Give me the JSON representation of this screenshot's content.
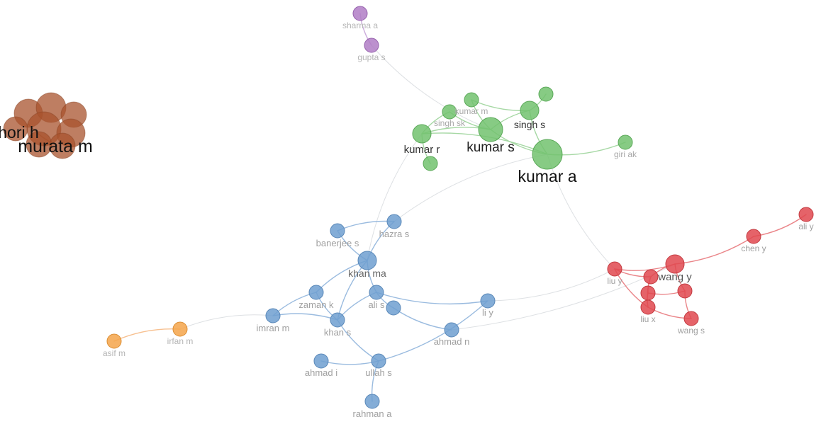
{
  "clusters": {
    "green": {
      "color": "#72c26f",
      "stroke": "#5aa858",
      "edge": "#9cd49a"
    },
    "blue": {
      "color": "#6f9fd0",
      "stroke": "#5a88b8",
      "edge": "#8fb4dc"
    },
    "red": {
      "color": "#e0484f",
      "stroke": "#c23a40",
      "edge": "#e8787c"
    },
    "purple": {
      "color": "#b07cc6",
      "stroke": "#9662ad",
      "edge": "#c7a3d8"
    },
    "orange": {
      "color": "#f5a54a",
      "stroke": "#dc8f35",
      "edge": "#f6b984"
    },
    "brown": {
      "color": "#a8532d",
      "stroke": "#8a4324",
      "edge": "#b86a48"
    }
  },
  "nodes": [
    {
      "id": "sharma-a",
      "label": "sharma a",
      "cluster": "purple",
      "weight": 1
    },
    {
      "id": "gupta-s",
      "label": "gupta s",
      "cluster": "purple",
      "weight": 1
    },
    {
      "id": "kumar-m",
      "label": "kumar m",
      "cluster": "green",
      "weight": 1
    },
    {
      "id": "singh-sk",
      "label": "singh sk",
      "cluster": "green",
      "weight": 1
    },
    {
      "id": "singh-s",
      "label": "singh s",
      "cluster": "green",
      "weight": 2
    },
    {
      "id": "green-top",
      "label": "",
      "cluster": "green",
      "weight": 1
    },
    {
      "id": "kumar-s",
      "label": "kumar s",
      "cluster": "green",
      "weight": 3
    },
    {
      "id": "kumar-r",
      "label": "kumar r",
      "cluster": "green",
      "weight": 2
    },
    {
      "id": "kumar-a",
      "label": "kumar a",
      "cluster": "green",
      "weight": 4
    },
    {
      "id": "giri-ak",
      "label": "giri ak",
      "cluster": "green",
      "weight": 1
    },
    {
      "id": "green-low",
      "label": "",
      "cluster": "green",
      "weight": 1
    },
    {
      "id": "hazra-s",
      "label": "hazra s",
      "cluster": "blue",
      "weight": 1
    },
    {
      "id": "banerjee-s",
      "label": "banerjee s",
      "cluster": "blue",
      "weight": 1
    },
    {
      "id": "khan-ma",
      "label": "khan ma",
      "cluster": "blue",
      "weight": 2
    },
    {
      "id": "zaman-k",
      "label": "zaman k",
      "cluster": "blue",
      "weight": 1
    },
    {
      "id": "ali-s",
      "label": "ali s",
      "cluster": "blue",
      "weight": 1
    },
    {
      "id": "blue-mid",
      "label": "",
      "cluster": "blue",
      "weight": 1
    },
    {
      "id": "khan-s",
      "label": "khan s",
      "cluster": "blue",
      "weight": 1
    },
    {
      "id": "imran-m",
      "label": "imran m",
      "cluster": "blue",
      "weight": 1
    },
    {
      "id": "li-y",
      "label": "li y",
      "cluster": "blue",
      "weight": 1
    },
    {
      "id": "ahmad-n",
      "label": "ahmad n",
      "cluster": "blue",
      "weight": 1
    },
    {
      "id": "ahmad-i",
      "label": "ahmad i",
      "cluster": "blue",
      "weight": 1
    },
    {
      "id": "ullah-s",
      "label": "ullah s",
      "cluster": "blue",
      "weight": 1
    },
    {
      "id": "rahman-a",
      "label": "rahman a",
      "cluster": "blue",
      "weight": 1
    },
    {
      "id": "asif-m",
      "label": "asif m",
      "cluster": "orange",
      "weight": 1
    },
    {
      "id": "irfan-m",
      "label": "irfan m",
      "cluster": "orange",
      "weight": 1
    },
    {
      "id": "liu-y",
      "label": "liu y",
      "cluster": "red",
      "weight": 1
    },
    {
      "id": "wang-y",
      "label": "wang y",
      "cluster": "red",
      "weight": 2
    },
    {
      "id": "red-a",
      "label": "",
      "cluster": "red",
      "weight": 1
    },
    {
      "id": "red-b",
      "label": "",
      "cluster": "red",
      "weight": 1
    },
    {
      "id": "red-c",
      "label": "",
      "cluster": "red",
      "weight": 1
    },
    {
      "id": "liu-x",
      "label": "liu x",
      "cluster": "red",
      "weight": 1
    },
    {
      "id": "wang-s",
      "label": "wang s",
      "cluster": "red",
      "weight": 1
    },
    {
      "id": "chen-y",
      "label": "chen y",
      "cluster": "red",
      "weight": 1
    },
    {
      "id": "ali-y",
      "label": "ali y",
      "cluster": "red",
      "weight": 1
    },
    {
      "id": "hori-h",
      "label": "hori h",
      "cluster": "brown",
      "weight": 3
    },
    {
      "id": "murata-m",
      "label": "murata m",
      "cluster": "brown",
      "weight": 3
    }
  ],
  "edges": [
    [
      "sharma-a",
      "gupta-s"
    ],
    [
      "gupta-s",
      "kumar-s"
    ],
    [
      "kumar-m",
      "singh-s"
    ],
    [
      "kumar-m",
      "kumar-s"
    ],
    [
      "singh-sk",
      "kumar-s"
    ],
    [
      "singh-sk",
      "kumar-r"
    ],
    [
      "singh-s",
      "green-top"
    ],
    [
      "singh-s",
      "kumar-s"
    ],
    [
      "singh-s",
      "kumar-a"
    ],
    [
      "kumar-s",
      "kumar-a"
    ],
    [
      "kumar-s",
      "kumar-r"
    ],
    [
      "kumar-a",
      "giri-ak"
    ],
    [
      "kumar-a",
      "kumar-r"
    ],
    [
      "kumar-r",
      "green-low"
    ],
    [
      "kumar-r",
      "khan-ma"
    ],
    [
      "kumar-a",
      "hazra-s"
    ],
    [
      "kumar-a",
      "liu-y"
    ],
    [
      "hazra-s",
      "banerjee-s"
    ],
    [
      "hazra-s",
      "khan-ma"
    ],
    [
      "banerjee-s",
      "khan-ma"
    ],
    [
      "khan-ma",
      "zaman-k"
    ],
    [
      "khan-ma",
      "khan-s"
    ],
    [
      "khan-ma",
      "ali-s"
    ],
    [
      "zaman-k",
      "khan-s"
    ],
    [
      "zaman-k",
      "imran-m"
    ],
    [
      "ali-s",
      "blue-mid"
    ],
    [
      "ali-s",
      "khan-s"
    ],
    [
      "ali-s",
      "li-y"
    ],
    [
      "blue-mid",
      "ahmad-n"
    ],
    [
      "khan-s",
      "imran-m"
    ],
    [
      "khan-s",
      "ullah-s"
    ],
    [
      "imran-m",
      "irfan-m"
    ],
    [
      "irfan-m",
      "asif-m"
    ],
    [
      "ahmad-i",
      "ullah-s"
    ],
    [
      "ullah-s",
      "li-y"
    ],
    [
      "ullah-s",
      "rahman-a"
    ],
    [
      "li-y",
      "liu-y"
    ],
    [
      "ahmad-n",
      "wang-y"
    ],
    [
      "liu-y",
      "wang-y"
    ],
    [
      "liu-y",
      "red-a"
    ],
    [
      "liu-y",
      "liu-x"
    ],
    [
      "wang-y",
      "red-a"
    ],
    [
      "wang-y",
      "red-c"
    ],
    [
      "wang-y",
      "chen-y"
    ],
    [
      "red-a",
      "red-b"
    ],
    [
      "red-a",
      "liu-x"
    ],
    [
      "red-b",
      "liu-x"
    ],
    [
      "red-b",
      "red-c"
    ],
    [
      "red-c",
      "wang-s"
    ],
    [
      "liu-x",
      "wang-s"
    ],
    [
      "chen-y",
      "ali-y"
    ],
    [
      "hori-h",
      "murata-m"
    ]
  ]
}
